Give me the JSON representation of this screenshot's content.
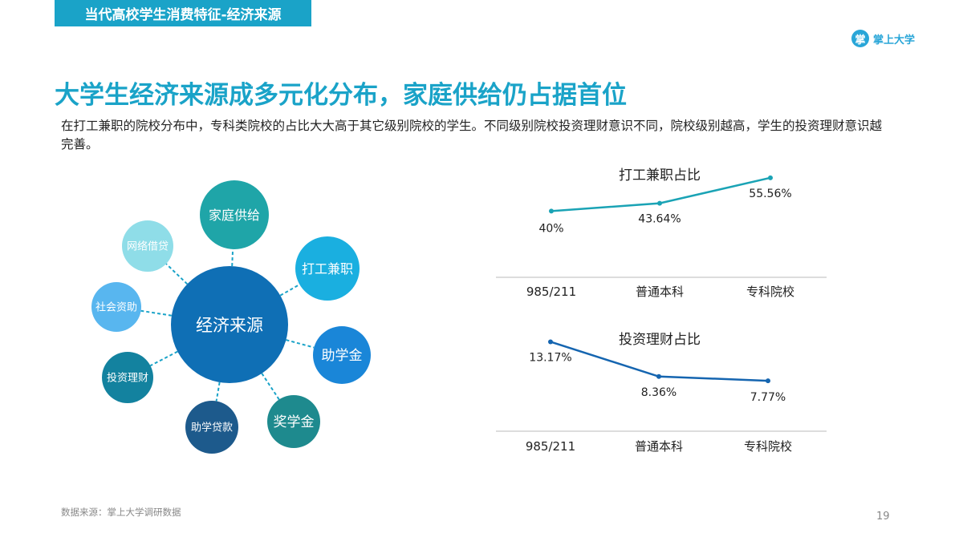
{
  "header": {
    "section_title": "当代高校学生消费特征-经济来源"
  },
  "logo": {
    "mark_text": "掌",
    "text": "掌上大学"
  },
  "headline": "大学生经济来源成多元化分布，家庭供给仍占据首位",
  "description": "在打工兼职的院校分布中，专科类院校的占比大大高于其它级别院校的学生。不同级别院校投资理财意识不同，院校级别越高，学生的投资理财意识越完善。",
  "diagram": {
    "center": "经济来源",
    "nodes": [
      {
        "label": "家庭供给",
        "color": "#1fa5a8"
      },
      {
        "label": "打工兼职",
        "color": "#1aafe0"
      },
      {
        "label": "助学金",
        "color": "#1a86d8"
      },
      {
        "label": "奖学金",
        "color": "#1e8a8e"
      },
      {
        "label": "助学贷款",
        "color": "#1d5a8c"
      },
      {
        "label": "投资理财",
        "color": "#13829f"
      },
      {
        "label": "社会资助",
        "color": "#58b6ef"
      },
      {
        "label": "网络借贷",
        "color": "#8fdde8"
      }
    ],
    "center_color": "#0f6fb5"
  },
  "chart_data": [
    {
      "type": "line",
      "title": "打工兼职占比",
      "categories": [
        "985/211",
        "普通本科",
        "专科院校"
      ],
      "values": [
        40,
        43.64,
        55.56
      ],
      "labels": [
        "40%",
        "43.64%",
        "55.56%"
      ],
      "color": "#1aa3b5"
    },
    {
      "type": "line",
      "title": "投资理财占比",
      "categories": [
        "985/211",
        "普通本科",
        "专科院校"
      ],
      "values": [
        13.17,
        8.36,
        7.77
      ],
      "labels": [
        "13.17%",
        "8.36%",
        "7.77%"
      ],
      "color": "#1565b0"
    }
  ],
  "footer": {
    "source": "数据来源：掌上大学调研数据",
    "page_number": "19"
  }
}
